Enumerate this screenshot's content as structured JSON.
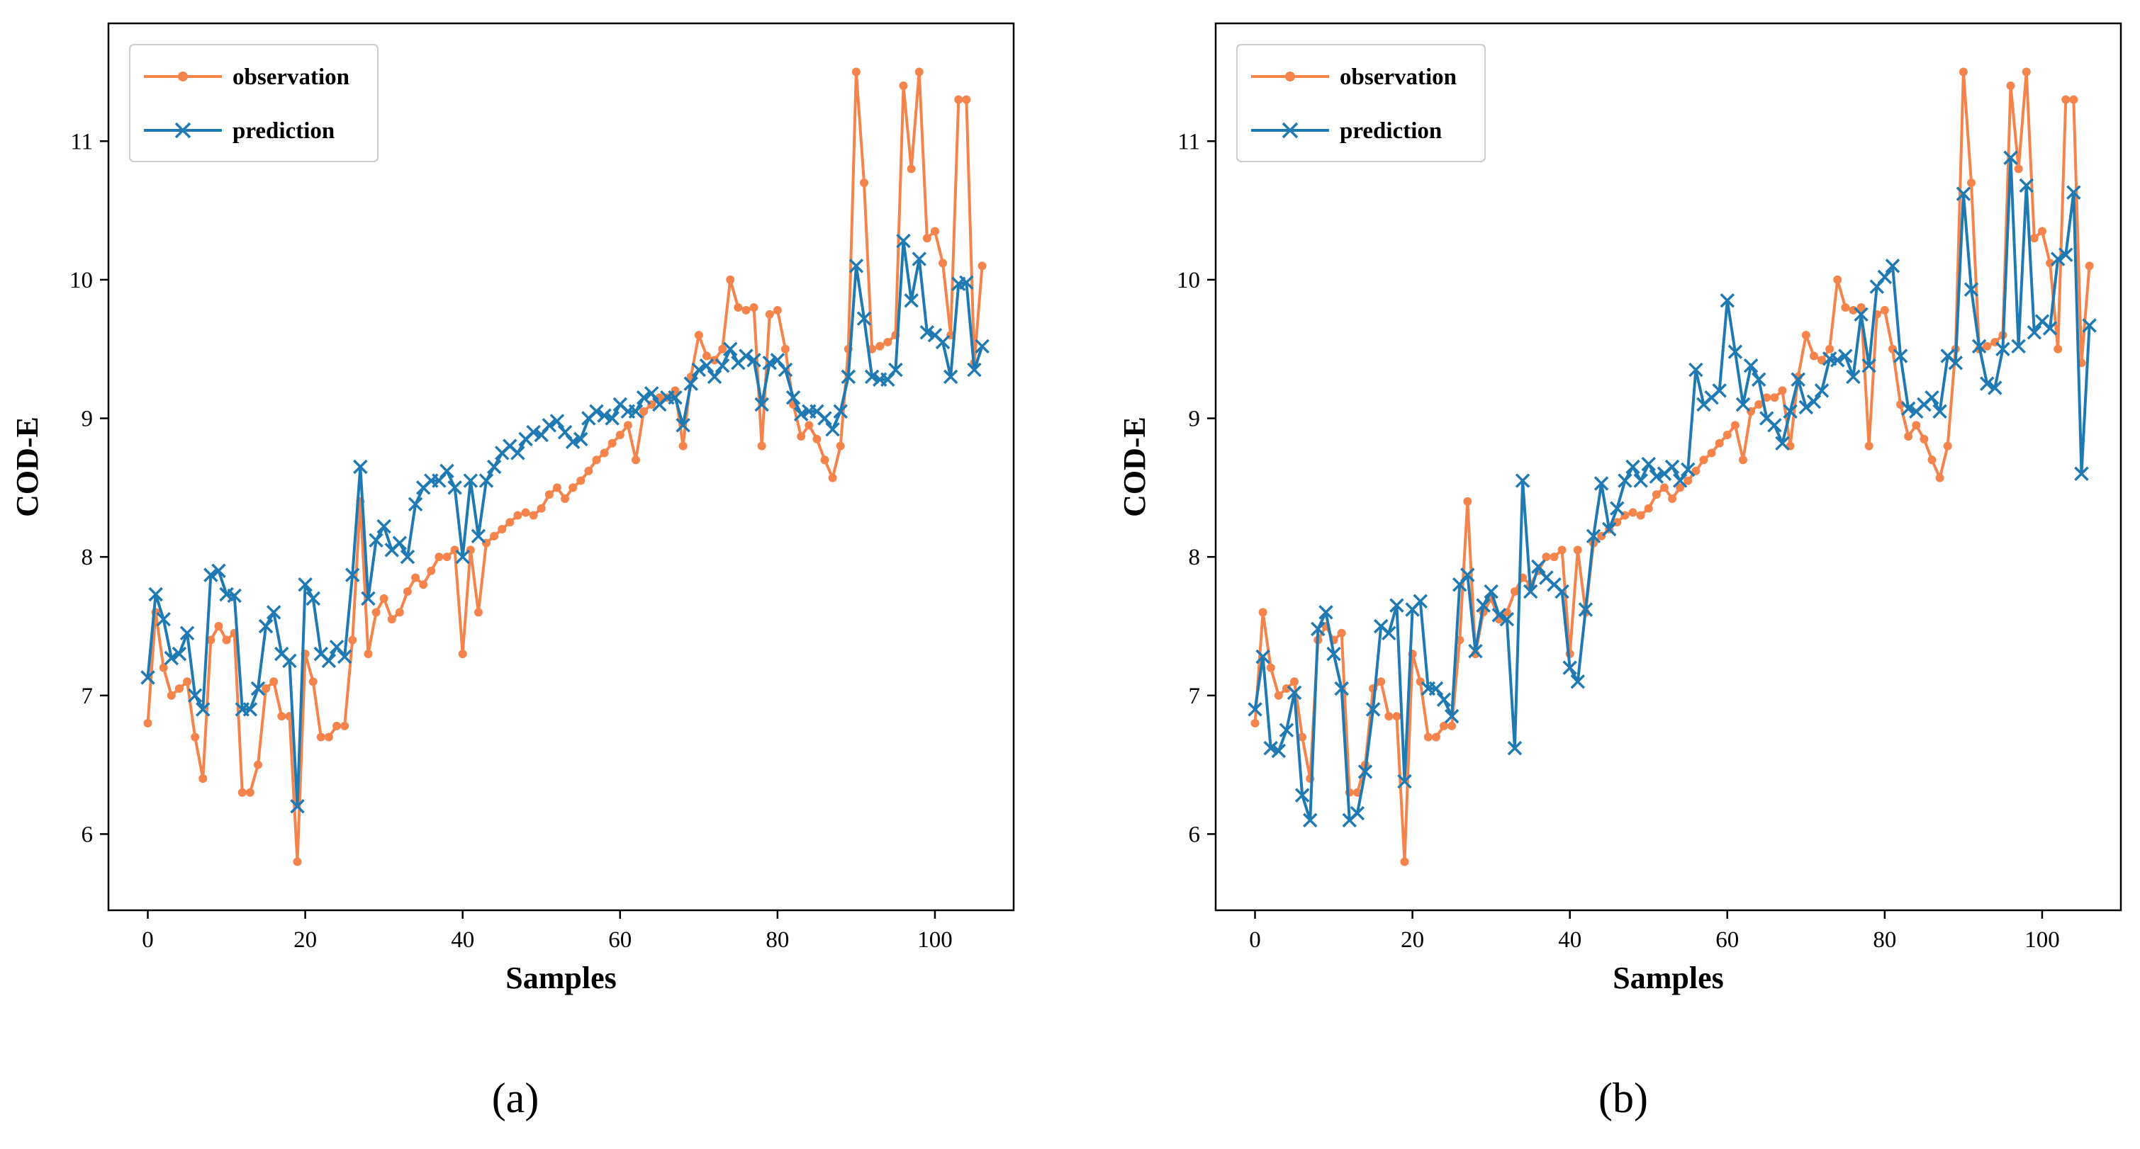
{
  "figure": {
    "panel_labels": [
      "(a)",
      "(b)"
    ]
  },
  "colors": {
    "observation": "#F4844B",
    "prediction": "#1F7AB3",
    "axis": "#000000"
  },
  "icons": {
    "observation_marker": "circle-marker-icon",
    "prediction_marker": "x-marker-icon"
  },
  "chart_data": [
    {
      "type": "line",
      "panel": "(a)",
      "xlabel": "Samples",
      "ylabel": "COD-E",
      "xlim": [
        -5,
        110
      ],
      "ylim": [
        5.45,
        11.85
      ],
      "xticks": [
        0,
        20,
        40,
        60,
        80,
        100
      ],
      "yticks": [
        6,
        7,
        8,
        9,
        10,
        11
      ],
      "legend": {
        "position": "top-left",
        "entries": [
          "observation",
          "prediction"
        ]
      },
      "series": [
        {
          "name": "observation",
          "marker": "circle",
          "values": [
            6.8,
            7.6,
            7.2,
            7.0,
            7.05,
            7.1,
            6.7,
            6.4,
            7.4,
            7.5,
            7.4,
            7.45,
            6.3,
            6.3,
            6.5,
            7.05,
            7.1,
            6.85,
            6.85,
            5.8,
            7.3,
            7.1,
            6.7,
            6.7,
            6.78,
            6.78,
            7.4,
            8.4,
            7.3,
            7.6,
            7.7,
            7.55,
            7.6,
            7.75,
            7.85,
            7.8,
            7.9,
            8.0,
            8.0,
            8.05,
            7.3,
            8.05,
            7.6,
            8.1,
            8.15,
            8.2,
            8.25,
            8.3,
            8.32,
            8.3,
            8.35,
            8.45,
            8.5,
            8.42,
            8.5,
            8.55,
            8.62,
            8.7,
            8.75,
            8.82,
            8.88,
            8.95,
            8.7,
            9.05,
            9.1,
            9.15,
            9.15,
            9.2,
            8.8,
            9.3,
            9.6,
            9.45,
            9.42,
            9.5,
            10.0,
            9.8,
            9.78,
            9.8,
            8.8,
            9.75,
            9.78,
            9.5,
            9.1,
            8.87,
            8.95,
            8.85,
            8.7,
            8.57,
            8.8,
            9.5,
            11.5,
            10.7,
            9.5,
            9.52,
            9.55,
            9.6,
            11.4,
            10.8,
            11.5,
            10.3,
            10.35,
            10.12,
            9.6,
            11.3,
            11.3,
            9.4,
            10.1
          ]
        },
        {
          "name": "prediction",
          "marker": "x",
          "values": [
            7.13,
            7.73,
            7.55,
            7.27,
            7.3,
            7.45,
            7.0,
            6.9,
            7.87,
            7.9,
            7.73,
            7.72,
            6.9,
            6.9,
            7.05,
            7.5,
            7.6,
            7.3,
            7.25,
            6.2,
            7.8,
            7.7,
            7.3,
            7.25,
            7.35,
            7.28,
            7.87,
            8.65,
            7.7,
            8.12,
            8.22,
            8.05,
            8.1,
            8.0,
            8.38,
            8.5,
            8.55,
            8.55,
            8.62,
            8.5,
            8.0,
            8.55,
            8.15,
            8.55,
            8.65,
            8.75,
            8.8,
            8.75,
            8.85,
            8.9,
            8.88,
            8.95,
            8.98,
            8.9,
            8.83,
            8.85,
            9.0,
            9.05,
            9.02,
            9.0,
            9.1,
            9.05,
            9.05,
            9.15,
            9.18,
            9.1,
            9.15,
            9.15,
            8.95,
            9.25,
            9.35,
            9.38,
            9.3,
            9.38,
            9.5,
            9.4,
            9.45,
            9.42,
            9.1,
            9.4,
            9.42,
            9.35,
            9.15,
            9.03,
            9.05,
            9.05,
            9.0,
            8.92,
            9.05,
            9.3,
            10.1,
            9.72,
            9.3,
            9.28,
            9.28,
            9.35,
            10.28,
            9.85,
            10.15,
            9.62,
            9.6,
            9.55,
            9.3,
            9.97,
            9.98,
            9.35,
            9.52
          ]
        }
      ]
    },
    {
      "type": "line",
      "panel": "(b)",
      "xlabel": "Samples",
      "ylabel": "COD-E",
      "xlim": [
        -5,
        110
      ],
      "ylim": [
        5.45,
        11.85
      ],
      "xticks": [
        0,
        20,
        40,
        60,
        80,
        100
      ],
      "yticks": [
        6,
        7,
        8,
        9,
        10,
        11
      ],
      "legend": {
        "position": "top-left",
        "entries": [
          "observation",
          "prediction"
        ]
      },
      "series": [
        {
          "name": "observation",
          "marker": "circle",
          "values": [
            6.8,
            7.6,
            7.2,
            7.0,
            7.05,
            7.1,
            6.7,
            6.4,
            7.4,
            7.5,
            7.4,
            7.45,
            6.3,
            6.3,
            6.5,
            7.05,
            7.1,
            6.85,
            6.85,
            5.8,
            7.3,
            7.1,
            6.7,
            6.7,
            6.78,
            6.78,
            7.4,
            8.4,
            7.3,
            7.6,
            7.7,
            7.55,
            7.6,
            7.75,
            7.85,
            7.8,
            7.9,
            8.0,
            8.0,
            8.05,
            7.3,
            8.05,
            7.6,
            8.1,
            8.15,
            8.2,
            8.25,
            8.3,
            8.32,
            8.3,
            8.35,
            8.45,
            8.5,
            8.42,
            8.5,
            8.55,
            8.62,
            8.7,
            8.75,
            8.82,
            8.88,
            8.95,
            8.7,
            9.05,
            9.1,
            9.15,
            9.15,
            9.2,
            8.8,
            9.3,
            9.6,
            9.45,
            9.42,
            9.5,
            10.0,
            9.8,
            9.78,
            9.8,
            8.8,
            9.75,
            9.78,
            9.5,
            9.1,
            8.87,
            8.95,
            8.85,
            8.7,
            8.57,
            8.8,
            9.5,
            11.5,
            10.7,
            9.5,
            9.52,
            9.55,
            9.6,
            11.4,
            10.8,
            11.5,
            10.3,
            10.35,
            10.12,
            9.5,
            11.3,
            11.3,
            9.4,
            10.1
          ]
        },
        {
          "name": "prediction",
          "marker": "x",
          "values": [
            6.9,
            7.28,
            6.62,
            6.6,
            6.75,
            7.02,
            6.28,
            6.1,
            7.48,
            7.6,
            7.3,
            7.05,
            6.1,
            6.15,
            6.45,
            6.9,
            7.5,
            7.45,
            7.65,
            6.38,
            7.62,
            7.68,
            7.05,
            7.05,
            6.97,
            6.85,
            7.8,
            7.87,
            7.32,
            7.65,
            7.75,
            7.58,
            7.55,
            6.62,
            8.55,
            7.75,
            7.93,
            7.85,
            7.8,
            7.75,
            7.2,
            7.1,
            7.62,
            8.15,
            8.53,
            8.2,
            8.35,
            8.55,
            8.65,
            8.55,
            8.67,
            8.58,
            8.6,
            8.65,
            8.55,
            8.63,
            9.35,
            9.1,
            9.15,
            9.2,
            9.85,
            9.48,
            9.1,
            9.38,
            9.28,
            9.0,
            8.95,
            8.82,
            9.05,
            9.28,
            9.08,
            9.12,
            9.2,
            9.43,
            9.42,
            9.45,
            9.3,
            9.75,
            9.38,
            9.95,
            10.02,
            10.1,
            9.45,
            9.07,
            9.05,
            9.1,
            9.15,
            9.05,
            9.45,
            9.4,
            10.62,
            9.93,
            9.52,
            9.25,
            9.22,
            9.5,
            10.88,
            9.52,
            10.68,
            9.62,
            9.7,
            9.65,
            10.15,
            10.18,
            10.63,
            8.6,
            9.67
          ]
        }
      ]
    }
  ]
}
